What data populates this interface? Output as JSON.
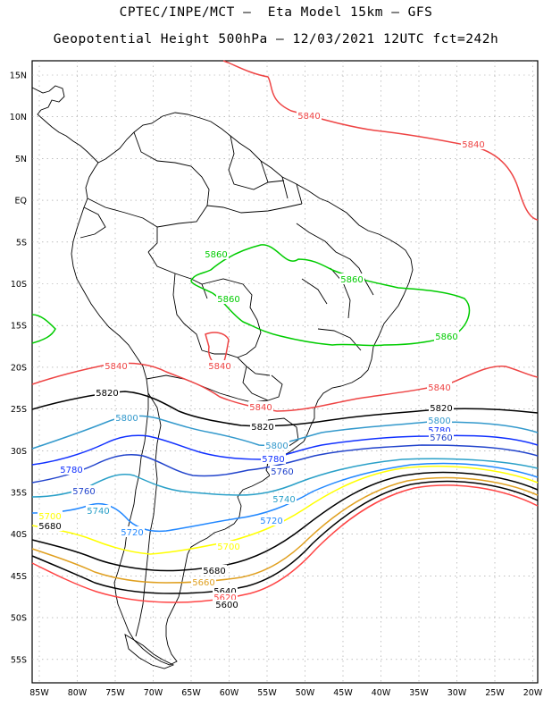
{
  "title_line1": "CPTEC/INPE/MCT –  Eta Model 15km – GFS",
  "title_line2": "Geopotential Height 500hPa – 12/03/2021 12UTC fct=242h",
  "lat_labels": [
    "15N",
    "10N",
    "5N",
    "EQ",
    "5S",
    "10S",
    "15S",
    "20S",
    "25S",
    "30S",
    "35S",
    "40S",
    "45S",
    "50S",
    "55S"
  ],
  "lon_labels": [
    "85W",
    "80W",
    "75W",
    "70W",
    "65W",
    "60W",
    "55W",
    "50W",
    "45W",
    "40W",
    "35W",
    "30W",
    "25W",
    "20W"
  ],
  "colors": {
    "c5560": "#000066",
    "c5620": "#ff4444",
    "c5640": "#000000",
    "c5660": "#e0a020",
    "c5680": "#000000",
    "c5700": "#ffff00",
    "c5720": "#2288ff",
    "c5740": "#2aa0c8",
    "c5760": "#2244cc",
    "c5780": "#1030ff",
    "c5800": "#3399cc",
    "c5820": "#000000",
    "c5840": "#ee4444",
    "c5860": "#00cc00",
    "c5880": "#00cc00"
  },
  "contour_labels": {
    "l5840a": "5840",
    "l5840b": "5840",
    "l5840c": "5840",
    "l5840d": "5840",
    "l5840e": "5840",
    "l5840f": "5840",
    "l5860a": "5860",
    "l5860b": "5860",
    "l5860c": "5860",
    "l5860d": "5860",
    "l5820a": "5820",
    "l5820b": "5820",
    "l5820c": "5820",
    "l5800a": "5800",
    "l5800b": "5800",
    "l5800c": "5800",
    "l5780a": "5780",
    "l5780b": "5780",
    "l5780c": "5780",
    "l5760a": "5760",
    "l5760b": "5760",
    "l5760c": "5760",
    "l5740a": "5740",
    "l5740b": "5740",
    "l5720a": "5720",
    "l5720b": "5720",
    "l5700a": "5700",
    "l5700b": "5700",
    "l5680a": "5680",
    "l5680b": "5680",
    "l5660": "5660",
    "l5640": "5640",
    "l5620": "5620",
    "l5600": "5600"
  }
}
